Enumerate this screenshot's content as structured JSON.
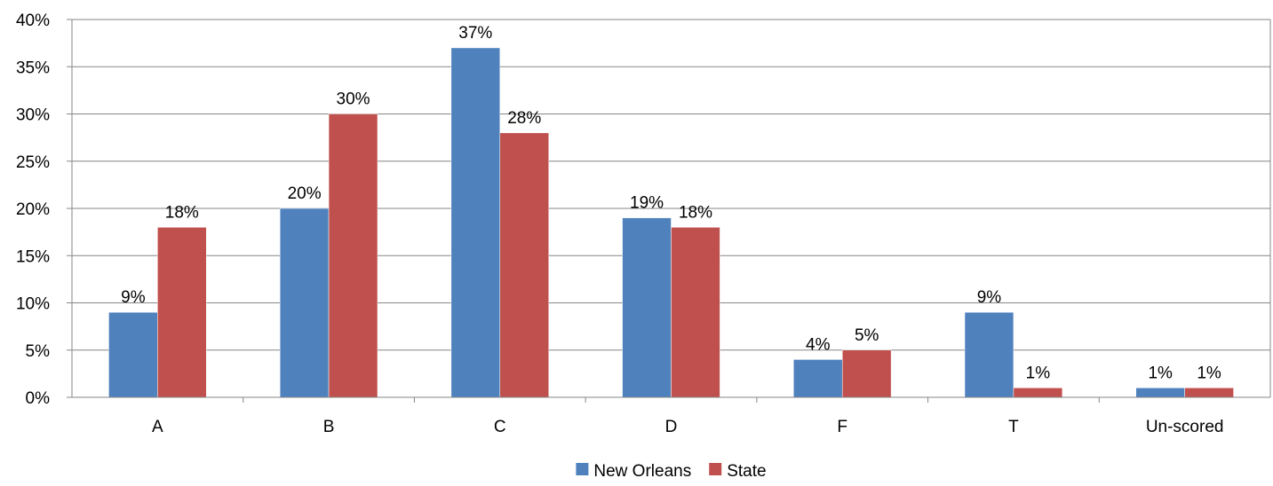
{
  "chart_data": {
    "type": "bar",
    "categories": [
      "A",
      "B",
      "C",
      "D",
      "F",
      "T",
      "Un-scored"
    ],
    "series": [
      {
        "name": "New Orleans",
        "color": "#4F81BD",
        "values": [
          9,
          20,
          37,
          19,
          4,
          9,
          1
        ]
      },
      {
        "name": "State",
        "color": "#C0504D",
        "values": [
          18,
          30,
          28,
          18,
          5,
          1,
          1
        ]
      }
    ],
    "value_suffix": "%",
    "ylim": [
      0,
      40
    ],
    "ytick_step": 5,
    "grid": true,
    "legend_position": "bottom"
  }
}
